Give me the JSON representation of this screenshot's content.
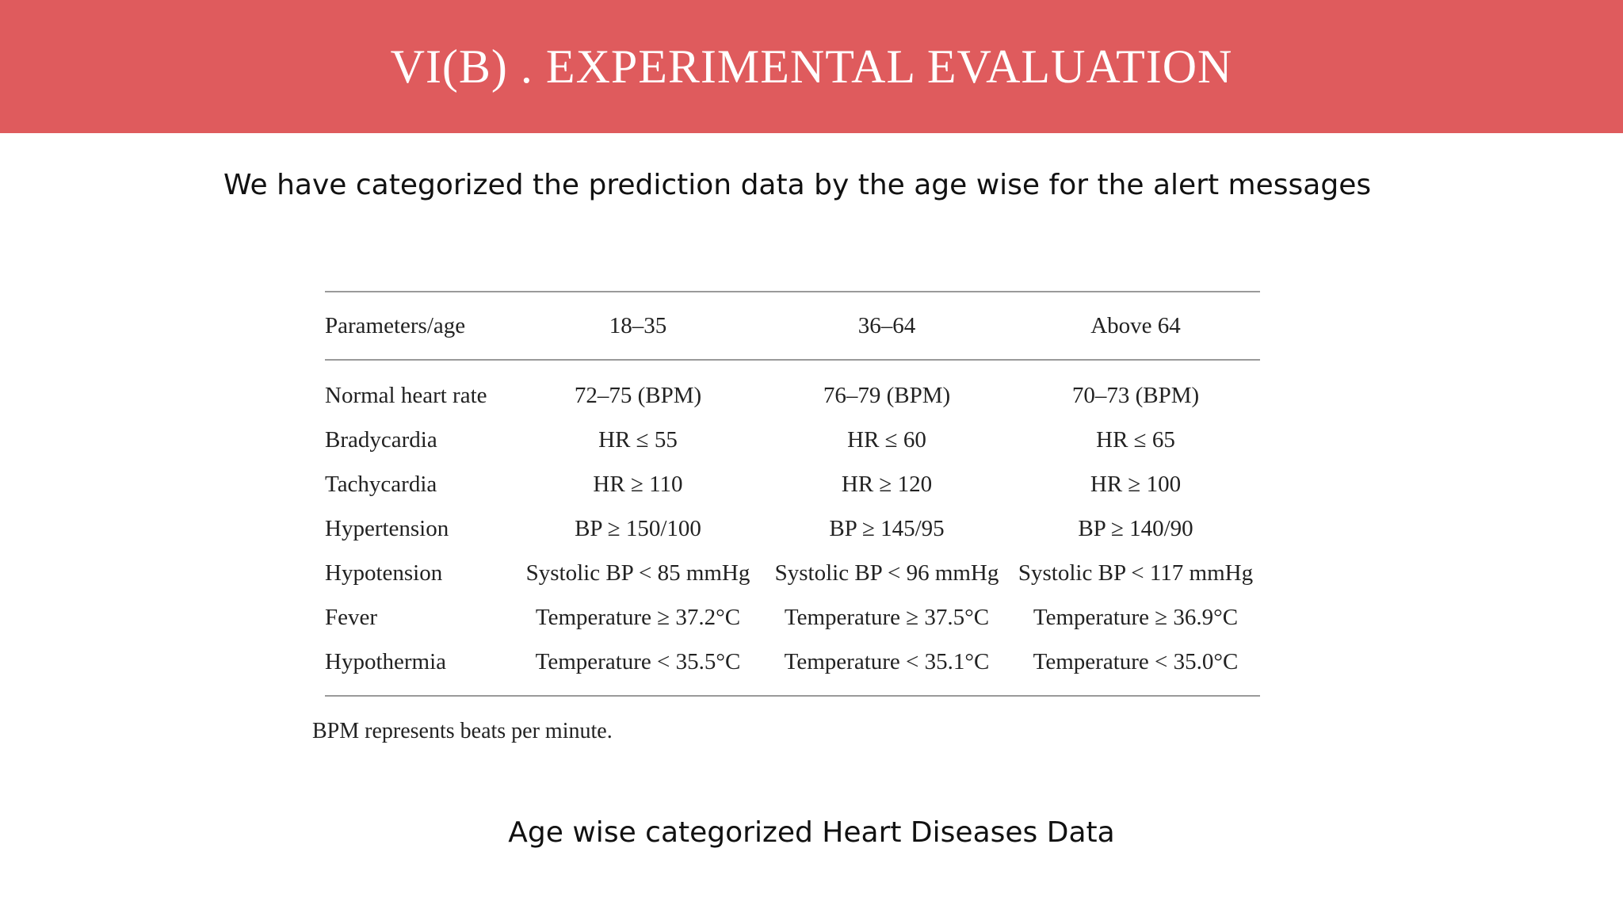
{
  "header": {
    "title": "VI(B) . EXPERIMENTAL EVALUATION",
    "background_color": "#df5b5d",
    "text_color": "#ffffff"
  },
  "subtitle": "We have categorized the prediction data by the age wise for the alert messages",
  "table": {
    "columns": [
      "Parameters/age",
      "18–35",
      "36–64",
      "Above 64"
    ],
    "rows": [
      [
        "Normal heart rate",
        "72–75 (BPM)",
        "76–79 (BPM)",
        "70–73 (BPM)"
      ],
      [
        "Bradycardia",
        "HR ≤ 55",
        "HR ≤ 60",
        "HR ≤ 65"
      ],
      [
        "Tachycardia",
        "HR ≥ 110",
        "HR ≥ 120",
        "HR ≥ 100"
      ],
      [
        "Hypertension",
        "BP ≥ 150/100",
        "BP ≥ 145/95",
        "BP ≥ 140/90"
      ],
      [
        "Hypotension",
        "Systolic BP < 85 mmHg",
        "Systolic BP < 96 mmHg",
        "Systolic BP < 117 mmHg"
      ],
      [
        "Fever",
        "Temperature ≥ 37.2°C",
        "Temperature ≥ 37.5°C",
        "Temperature ≥ 36.9°C"
      ],
      [
        "Hypothermia",
        "Temperature < 35.5°C",
        "Temperature < 35.1°C",
        "Temperature < 35.0°C"
      ]
    ]
  },
  "footnote": "BPM represents beats per minute.",
  "caption": "Age wise categorized Heart Diseases Data"
}
